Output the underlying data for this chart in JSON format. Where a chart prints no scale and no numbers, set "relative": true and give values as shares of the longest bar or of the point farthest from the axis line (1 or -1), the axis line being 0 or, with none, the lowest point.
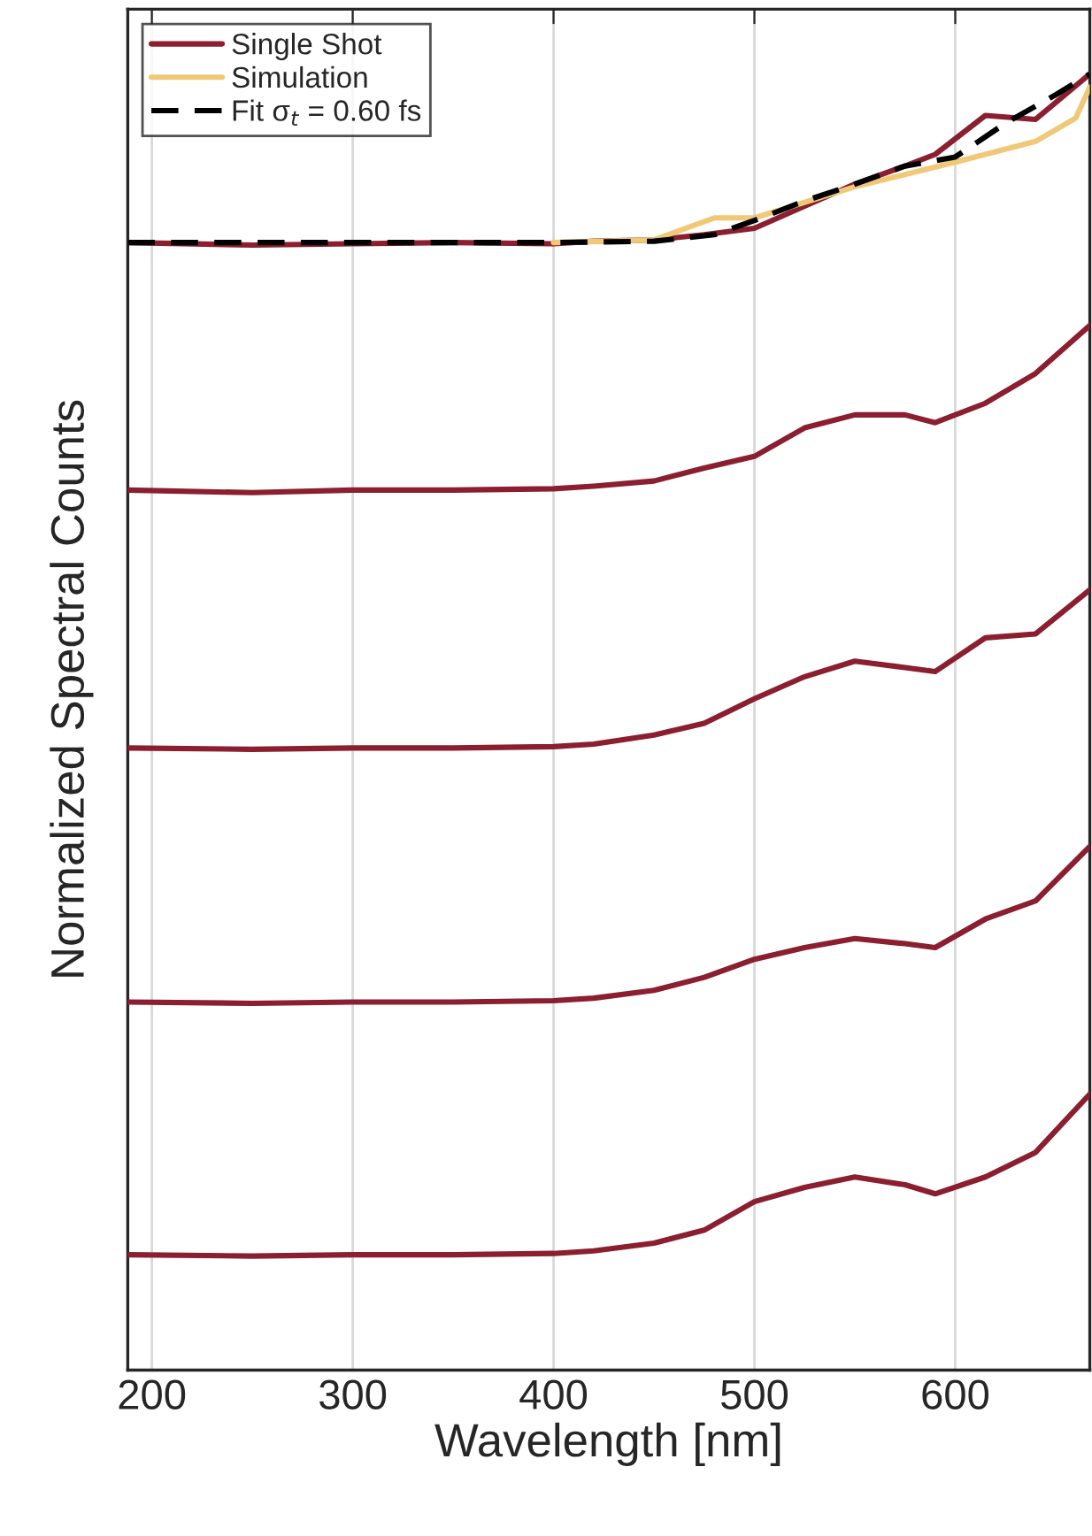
{
  "chart_data": {
    "type": "line",
    "relative": true,
    "xlabel": "Wavelength [nm]",
    "ylabel": "Normalized Spectral Counts",
    "x": [
      188,
      250,
      300,
      350,
      400,
      420,
      450,
      475,
      500,
      525,
      550,
      575,
      590,
      615,
      640,
      667
    ],
    "xlim": [
      188,
      667
    ],
    "xticks": [
      200,
      300,
      400,
      500,
      600
    ],
    "grid": "x",
    "legend": "top left",
    "series": [
      {
        "name": "Single Shot",
        "color": "#8b1e2f",
        "values": [
          0.87,
          0.868,
          0.869,
          0.87,
          0.869,
          0.871,
          0.872,
          0.876,
          0.881,
          0.898,
          0.915,
          0.929,
          0.938,
          0.968,
          0.965,
          1.0
        ]
      },
      {
        "name": "Simulation",
        "color": "#f0c878",
        "x": [
          400,
          450,
          480,
          500,
          550,
          600,
          640,
          660,
          667
        ],
        "values": [
          0.87,
          0.872,
          0.889,
          0.889,
          0.913,
          0.932,
          0.948,
          0.966,
          0.99
        ]
      },
      {
        "name": "Fit σ$_{t}$ = 0.60 fs",
        "color": "#000000",
        "line_style": "dashed",
        "x": [
          188,
          300,
          400,
          450,
          480,
          500,
          525,
          550,
          575,
          600,
          625,
          650,
          667
        ],
        "values": [
          0.87,
          0.87,
          0.87,
          0.871,
          0.876,
          0.887,
          0.902,
          0.915,
          0.929,
          0.936,
          0.962,
          0.984,
          1.0
        ]
      },
      {
        "color": "#8b1e2f",
        "values": [
          0.679,
          0.677,
          0.679,
          0.679,
          0.68,
          0.682,
          0.686,
          0.696,
          0.705,
          0.727,
          0.737,
          0.737,
          0.731,
          0.746,
          0.769,
          0.806
        ]
      },
      {
        "color": "#8b1e2f",
        "values": [
          0.48,
          0.479,
          0.48,
          0.48,
          0.481,
          0.483,
          0.49,
          0.499,
          0.518,
          0.535,
          0.547,
          0.542,
          0.539,
          0.565,
          0.568,
          0.602
        ]
      },
      {
        "color": "#8b1e2f",
        "values": [
          0.284,
          0.283,
          0.284,
          0.284,
          0.285,
          0.287,
          0.293,
          0.303,
          0.317,
          0.326,
          0.333,
          0.329,
          0.326,
          0.348,
          0.362,
          0.404
        ]
      },
      {
        "color": "#8b1e2f",
        "values": [
          0.089,
          0.088,
          0.089,
          0.089,
          0.09,
          0.092,
          0.098,
          0.108,
          0.13,
          0.141,
          0.149,
          0.143,
          0.136,
          0.149,
          0.168,
          0.213
        ]
      }
    ]
  }
}
